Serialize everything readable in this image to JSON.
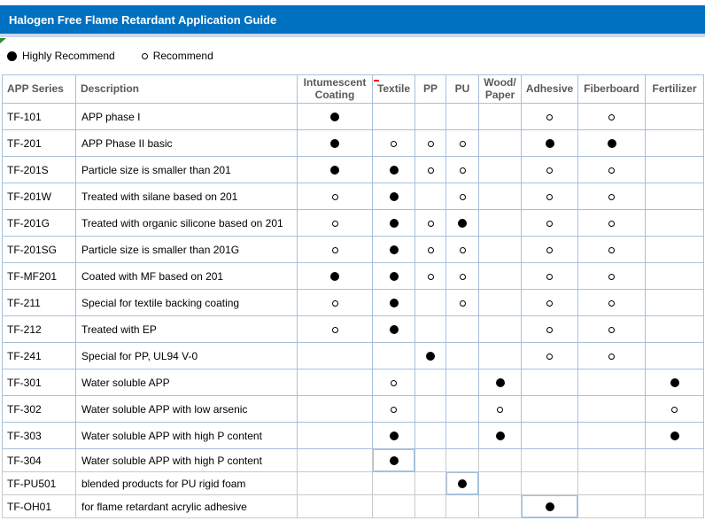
{
  "title": "Halogen Free Flame Retardant Application Guide",
  "legend": {
    "highly_label": "Highly Recommend",
    "recommend_label": "Recommend"
  },
  "table": {
    "columns": [
      {
        "key": "series",
        "label": "APP Series"
      },
      {
        "key": "description",
        "label": "Description"
      },
      {
        "key": "intumescent-coating",
        "label": "Intumescent Coating"
      },
      {
        "key": "textile",
        "label": "Textile"
      },
      {
        "key": "pp",
        "label": "PP"
      },
      {
        "key": "pu",
        "label": "PU"
      },
      {
        "key": "wood-paper",
        "label": "Wood/Paper"
      },
      {
        "key": "adhesive",
        "label": "Adhesive"
      },
      {
        "key": "fiberboard",
        "label": "Fiberboard"
      },
      {
        "key": "fertilizer",
        "label": "Fertilizer"
      }
    ],
    "mark_legend": {
      "H": "Highly Recommend",
      "R": "Recommend"
    },
    "rows": [
      {
        "series": "TF-101",
        "description": "APP phase I",
        "marks": [
          "H",
          "",
          "",
          "",
          "",
          "R",
          "R",
          ""
        ]
      },
      {
        "series": "TF-201",
        "description": "APP Phase II basic",
        "marks": [
          "H",
          "R",
          "R",
          "R",
          "",
          "H",
          "H",
          ""
        ]
      },
      {
        "series": "TF-201S",
        "description": "Particle size is smaller than 201",
        "marks": [
          "H",
          "H",
          "R",
          "R",
          "",
          "R",
          "R",
          ""
        ]
      },
      {
        "series": "TF-201W",
        "description": "Treated with silane based on 201",
        "marks": [
          "R",
          "H",
          "",
          "R",
          "",
          "R",
          "R",
          ""
        ]
      },
      {
        "series": "TF-201G",
        "description": "Treated with organic silicone based on 201",
        "marks": [
          "R",
          "H",
          "R",
          "H",
          "",
          "R",
          "R",
          ""
        ]
      },
      {
        "series": "TF-201SG",
        "description": "Particle size is smaller than 201G",
        "marks": [
          "R",
          "H",
          "R",
          "R",
          "",
          "R",
          "R",
          ""
        ]
      },
      {
        "series": "TF-MF201",
        "description": "Coated with MF based on 201",
        "marks": [
          "H",
          "H",
          "R",
          "R",
          "",
          "R",
          "R",
          ""
        ]
      },
      {
        "series": "TF-211",
        "description": "Special for textile backing coating",
        "marks": [
          "R",
          "H",
          "",
          "R",
          "",
          "R",
          "R",
          ""
        ]
      },
      {
        "series": "TF-212",
        "description": "Treated with EP",
        "marks": [
          "R",
          "H",
          "",
          "",
          "",
          "R",
          "R",
          ""
        ]
      },
      {
        "series": "TF-241",
        "description": "Special for PP, UL94 V-0",
        "marks": [
          "",
          "",
          "H",
          "",
          "",
          "R",
          "R",
          ""
        ]
      },
      {
        "series": "TF-301",
        "description": "Water soluble APP",
        "marks": [
          "",
          "R",
          "",
          "",
          "H",
          "",
          "",
          "H"
        ]
      },
      {
        "series": "TF-302",
        "description": "Water soluble APP with low arsenic",
        "marks": [
          "",
          "R",
          "",
          "",
          "R",
          "",
          "",
          "R"
        ]
      },
      {
        "series": "TF-303",
        "description": "Water soluble APP with high P content",
        "marks": [
          "",
          "H",
          "",
          "",
          "H",
          "",
          "",
          "H"
        ]
      },
      {
        "series": "TF-304",
        "description": "Water soluble APP with high P content",
        "marks": [
          "",
          "H",
          "",
          "",
          "",
          "",
          "",
          ""
        ]
      },
      {
        "series": "TF-PU501",
        "description": "blended products for PU rigid foam",
        "marks": [
          "",
          "",
          "",
          "H",
          "",
          "",
          "",
          ""
        ]
      },
      {
        "series": "TF-OH01",
        "description": "for flame retardant acrylic adhesive",
        "marks": [
          "",
          "",
          "",
          "",
          "",
          "H",
          "",
          ""
        ]
      }
    ]
  },
  "colors": {
    "title_bar": "#0070C0",
    "title_text": "#FFFFFF",
    "title_strip": "#C9DAEE",
    "grid_blue": "#A7C1DC",
    "grid_gray": "#C9C9C9",
    "header_text": "#595959",
    "body_text": "#000000",
    "mark": "#000000",
    "error_indicator_green": "#2E8B2E",
    "comment_indicator_red": "#FF0000"
  }
}
